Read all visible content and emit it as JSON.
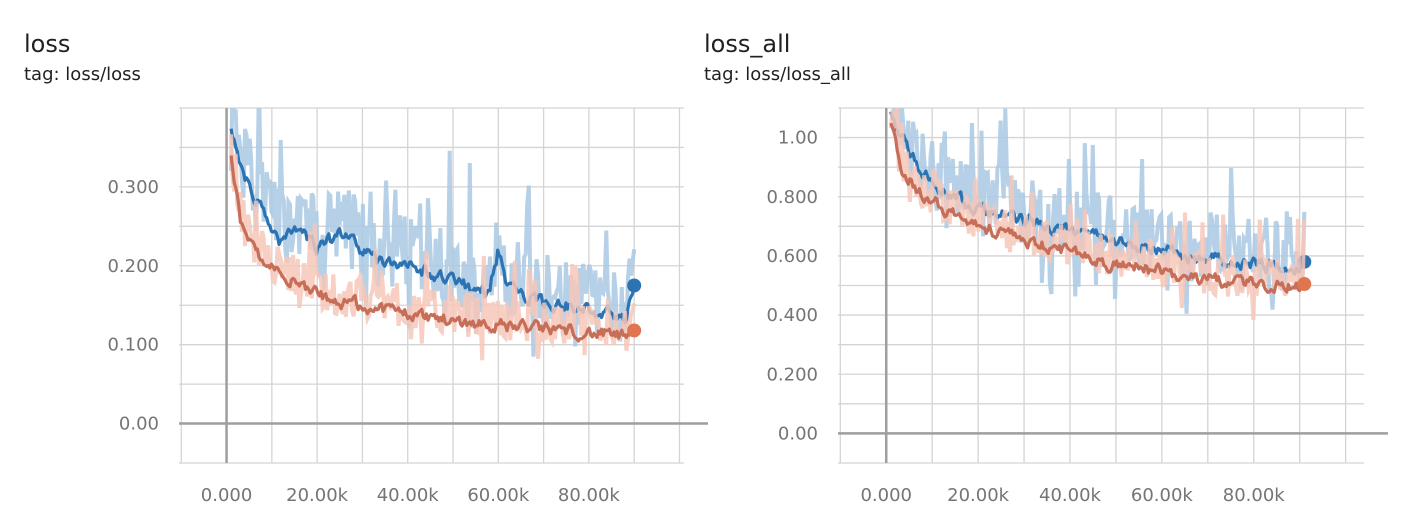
{
  "colors": {
    "grid": "#d4d4d4",
    "axis": "#9e9e9e",
    "tick_text": "#757575",
    "blue": "#2c73b4",
    "blue_raw": "#a9c9e3",
    "orange": "#c66e58",
    "orange_raw": "#f6c7b8",
    "orange_marker": "#e0754f"
  },
  "chart_data": [
    {
      "type": "line",
      "title": "loss",
      "subtitle": "tag: loss/loss",
      "xlim": [
        -10500,
        101000
      ],
      "ylim": [
        -0.05,
        0.4
      ],
      "x_ticks": [
        0,
        20000,
        40000,
        60000,
        80000
      ],
      "x_tick_labels": [
        "0.000",
        "20.00k",
        "40.00k",
        "60.00k",
        "80.00k"
      ],
      "y_ticks": [
        0,
        0.1,
        0.2,
        0.3
      ],
      "y_tick_labels": [
        "0.00",
        "0.100",
        "0.200",
        "0.300"
      ],
      "grid": true,
      "series": [
        {
          "color": "blue",
          "raw_color": "blue_raw",
          "x_start": 1000,
          "x_end": 90000,
          "x": [
            1000,
            3000,
            5000,
            8000,
            12000,
            16000,
            20000,
            25000,
            30000,
            35000,
            40000,
            45000,
            50000,
            55000,
            58000,
            60000,
            62000,
            65000,
            70000,
            75000,
            80000,
            85000,
            88000,
            90000
          ],
          "y": [
            0.38,
            0.33,
            0.3,
            0.27,
            0.23,
            0.25,
            0.22,
            0.24,
            0.22,
            0.2,
            0.205,
            0.19,
            0.185,
            0.165,
            0.17,
            0.22,
            0.17,
            0.165,
            0.155,
            0.15,
            0.145,
            0.14,
            0.135,
            0.175
          ],
          "end_value": 0.175
        },
        {
          "color": "orange",
          "raw_color": "orange_raw",
          "x_start": 1000,
          "x_end": 90000,
          "x": [
            1000,
            3000,
            5000,
            8000,
            12000,
            16000,
            20000,
            25000,
            30000,
            35000,
            40000,
            45000,
            50000,
            55000,
            60000,
            65000,
            70000,
            75000,
            80000,
            85000,
            88000,
            90000
          ],
          "y": [
            0.34,
            0.26,
            0.23,
            0.21,
            0.19,
            0.175,
            0.165,
            0.155,
            0.15,
            0.145,
            0.14,
            0.135,
            0.13,
            0.128,
            0.125,
            0.123,
            0.12,
            0.118,
            0.115,
            0.112,
            0.11,
            0.118
          ],
          "end_value": 0.118
        }
      ]
    },
    {
      "type": "line",
      "title": "loss_all",
      "subtitle": "tag: loss/loss_all",
      "xlim": [
        -10500,
        104000
      ],
      "ylim": [
        -0.1,
        1.1
      ],
      "x_ticks": [
        0,
        20000,
        40000,
        60000,
        80000
      ],
      "x_tick_labels": [
        "0.000",
        "20.00k",
        "40.00k",
        "60.00k",
        "80.00k"
      ],
      "y_ticks": [
        0,
        0.2,
        0.4,
        0.6,
        0.8,
        1.0
      ],
      "y_tick_labels": [
        "0.00",
        "0.200",
        "0.400",
        "0.600",
        "0.800",
        "1.00"
      ],
      "grid": true,
      "series": [
        {
          "color": "blue",
          "raw_color": "blue_raw",
          "x_start": 1000,
          "x_end": 91000,
          "x": [
            1000,
            3000,
            5000,
            8000,
            12000,
            16000,
            20000,
            25000,
            30000,
            35000,
            40000,
            45000,
            50000,
            55000,
            60000,
            65000,
            70000,
            75000,
            80000,
            85000,
            88000,
            91000
          ],
          "y": [
            1.1,
            1.0,
            0.95,
            0.88,
            0.82,
            0.79,
            0.76,
            0.74,
            0.72,
            0.7,
            0.68,
            0.67,
            0.65,
            0.63,
            0.62,
            0.6,
            0.59,
            0.58,
            0.57,
            0.565,
            0.56,
            0.58
          ],
          "end_value": 0.58
        },
        {
          "color": "orange",
          "raw_color": "orange_raw",
          "x_start": 1000,
          "x_end": 91000,
          "x": [
            1000,
            3000,
            5000,
            8000,
            12000,
            16000,
            20000,
            25000,
            30000,
            35000,
            40000,
            45000,
            50000,
            55000,
            60000,
            65000,
            70000,
            75000,
            80000,
            85000,
            88000,
            91000
          ],
          "y": [
            1.05,
            0.9,
            0.86,
            0.81,
            0.76,
            0.73,
            0.7,
            0.67,
            0.65,
            0.63,
            0.61,
            0.59,
            0.57,
            0.56,
            0.545,
            0.53,
            0.52,
            0.51,
            0.505,
            0.5,
            0.5,
            0.505
          ],
          "end_value": 0.505
        }
      ]
    }
  ]
}
